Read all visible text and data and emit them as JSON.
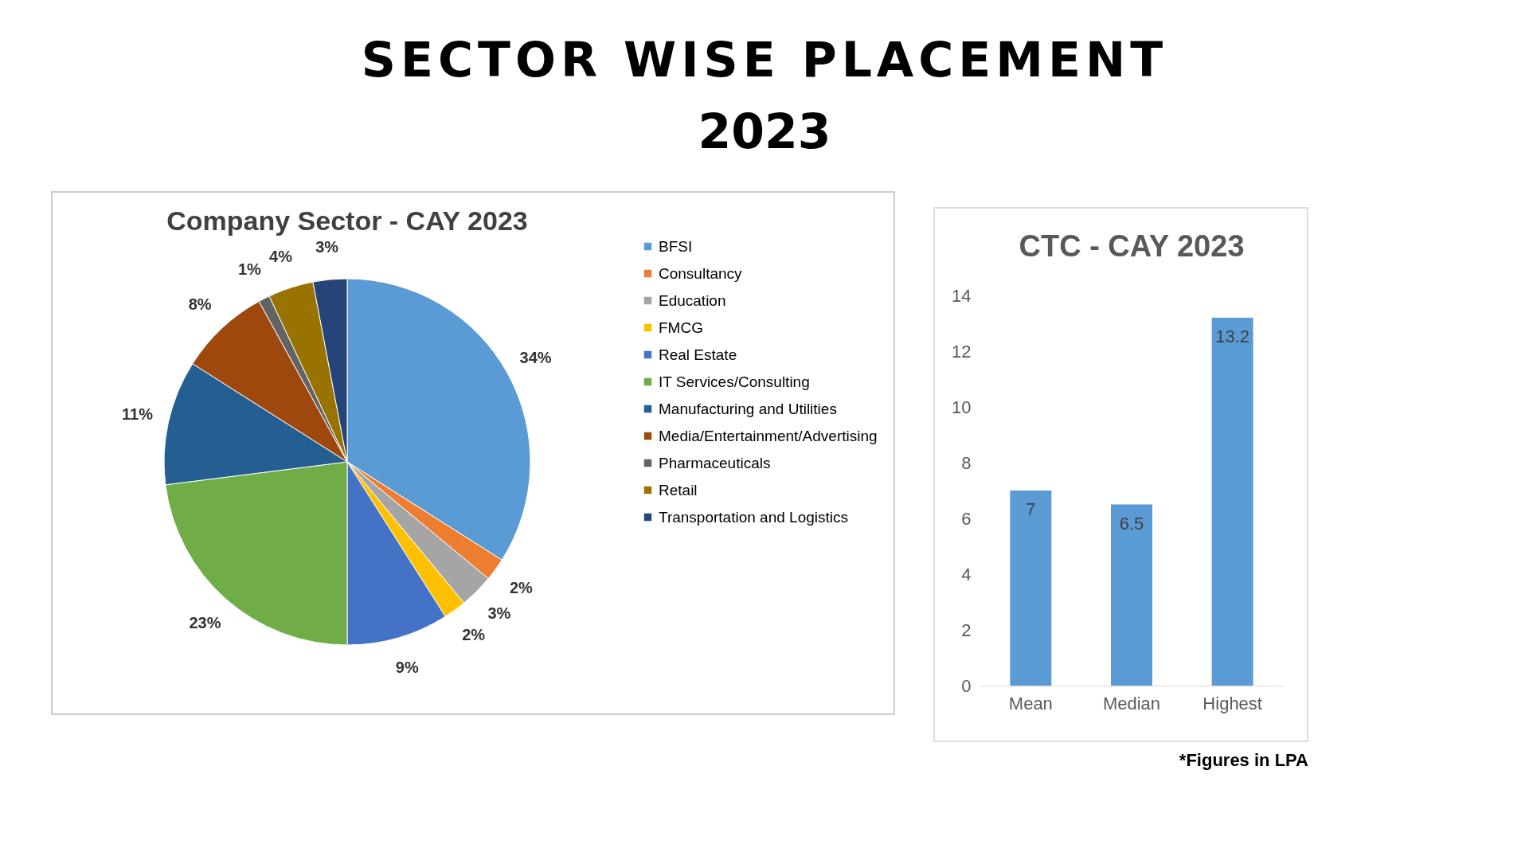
{
  "chart_data": [
    {
      "type": "other",
      "title": "SECTOR WISE PLACEMENT",
      "subtitle": "2023"
    },
    {
      "type": "pie",
      "title": "Company Sector - CAY 2023",
      "categories": [
        "BFSI",
        "Consultancy",
        "Education",
        "FMCG",
        "Real Estate",
        "IT Services/Consulting",
        "Manufacturing and Utilities",
        "Media/Entertainment/Advertising",
        "Pharmaceuticals",
        "Retail",
        "Transportation and Logistics"
      ],
      "values": [
        34,
        2,
        3,
        2,
        9,
        23,
        11,
        8,
        1,
        4,
        3
      ],
      "value_labels": [
        "34%",
        "2%",
        "3%",
        "2%",
        "9%",
        "23%",
        "11%",
        "8%",
        "1%",
        "4%",
        "3%"
      ],
      "colors": [
        "#5b9bd5",
        "#ed7d31",
        "#a5a5a5",
        "#ffc000",
        "#4472c4",
        "#70ad47",
        "#255e91",
        "#9e480e",
        "#636363",
        "#997300",
        "#264478"
      ],
      "legend": "right"
    },
    {
      "type": "bar",
      "title": "CTC - CAY 2023",
      "categories": [
        "Mean",
        "Median",
        "Highest"
      ],
      "values": [
        7,
        6.5,
        13.2
      ],
      "color": "#5b9bd5",
      "ylim": [
        0,
        14
      ],
      "yticks": [
        0,
        2,
        4,
        6,
        8,
        10,
        12,
        14
      ],
      "data_labels": true,
      "annotations": [
        "*Figures in LPA"
      ]
    }
  ]
}
